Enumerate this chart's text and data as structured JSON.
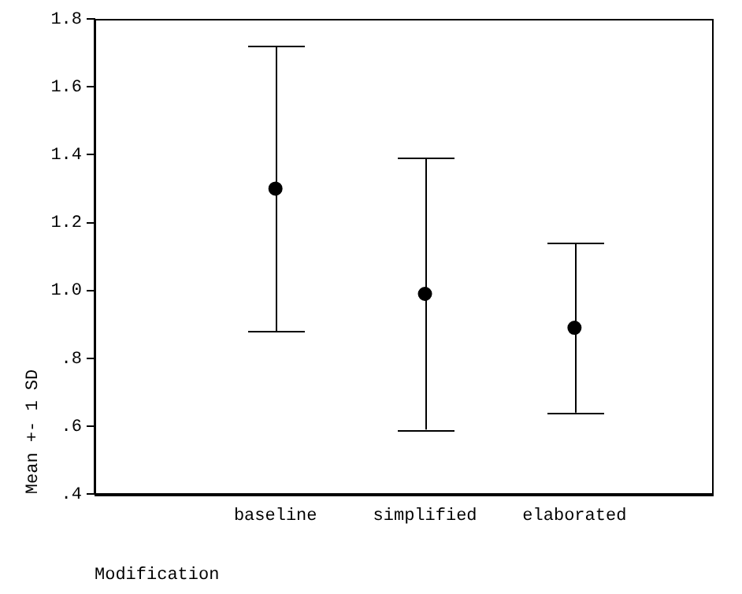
{
  "chart_data": {
    "type": "scatter",
    "xlabel": "Modification",
    "ylabel": "Mean +- 1 SD",
    "categories": [
      "baseline",
      "simplified",
      "elaborated"
    ],
    "values": [
      1.3,
      0.99,
      0.89
    ],
    "errors": [
      0.42,
      0.4,
      0.25
    ],
    "color": "#000000",
    "marker": "circle",
    "grid": false,
    "legend": false,
    "ylim": [
      0.4,
      1.8
    ],
    "yticks": [
      {
        "value": 0.4,
        "label": ".4"
      },
      {
        "value": 0.6,
        "label": ".6"
      },
      {
        "value": 0.8,
        "label": ".8"
      },
      {
        "value": 1.0,
        "label": "1.0"
      },
      1.2,
      1.4,
      1.6,
      1.8
    ]
  }
}
